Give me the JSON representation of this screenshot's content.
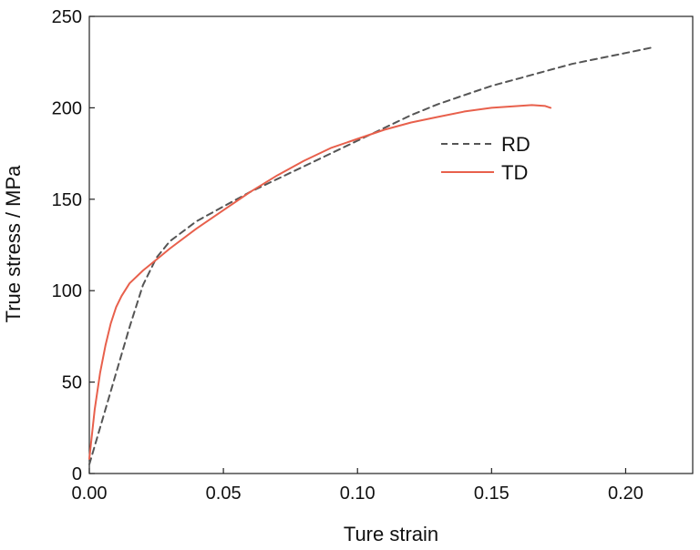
{
  "chart_data": {
    "type": "line",
    "title": "",
    "xlabel": "Ture strain",
    "ylabel": "True stress / MPa",
    "xlim": [
      0,
      0.225
    ],
    "ylim": [
      0,
      250
    ],
    "xticks": [
      0.0,
      0.05,
      0.1,
      0.15,
      0.2
    ],
    "xtick_labels": [
      "0.00",
      "0.05",
      "0.10",
      "0.15",
      "0.20"
    ],
    "yticks": [
      0,
      50,
      100,
      150,
      200,
      250
    ],
    "ytick_labels": [
      "0",
      "50",
      "100",
      "150",
      "200",
      "250"
    ],
    "grid": false,
    "legend_position": "center-right",
    "series": [
      {
        "name": "RD",
        "color": "#555555",
        "dash": true,
        "x": [
          0,
          0.005,
          0.01,
          0.015,
          0.02,
          0.025,
          0.03,
          0.04,
          0.05,
          0.06,
          0.07,
          0.08,
          0.09,
          0.1,
          0.11,
          0.12,
          0.13,
          0.14,
          0.15,
          0.16,
          0.17,
          0.18,
          0.19,
          0.2,
          0.21
        ],
        "y": [
          5,
          30,
          55,
          80,
          103,
          118,
          127,
          138,
          146,
          154,
          161,
          168,
          175,
          182,
          189,
          196,
          202,
          207,
          212,
          216,
          220,
          224,
          227,
          230,
          233
        ]
      },
      {
        "name": "TD",
        "color": "#e8604c",
        "dash": false,
        "x": [
          0,
          0.002,
          0.004,
          0.006,
          0.008,
          0.01,
          0.012,
          0.015,
          0.02,
          0.025,
          0.03,
          0.04,
          0.05,
          0.06,
          0.07,
          0.08,
          0.09,
          0.1,
          0.11,
          0.12,
          0.13,
          0.14,
          0.15,
          0.16,
          0.165,
          0.17,
          0.172
        ],
        "y": [
          8,
          35,
          55,
          70,
          82,
          91,
          97,
          104,
          111,
          117,
          123,
          134,
          144,
          154,
          163,
          171,
          178,
          183,
          188,
          192,
          195,
          198,
          200,
          201,
          201.5,
          201,
          200
        ]
      }
    ]
  }
}
